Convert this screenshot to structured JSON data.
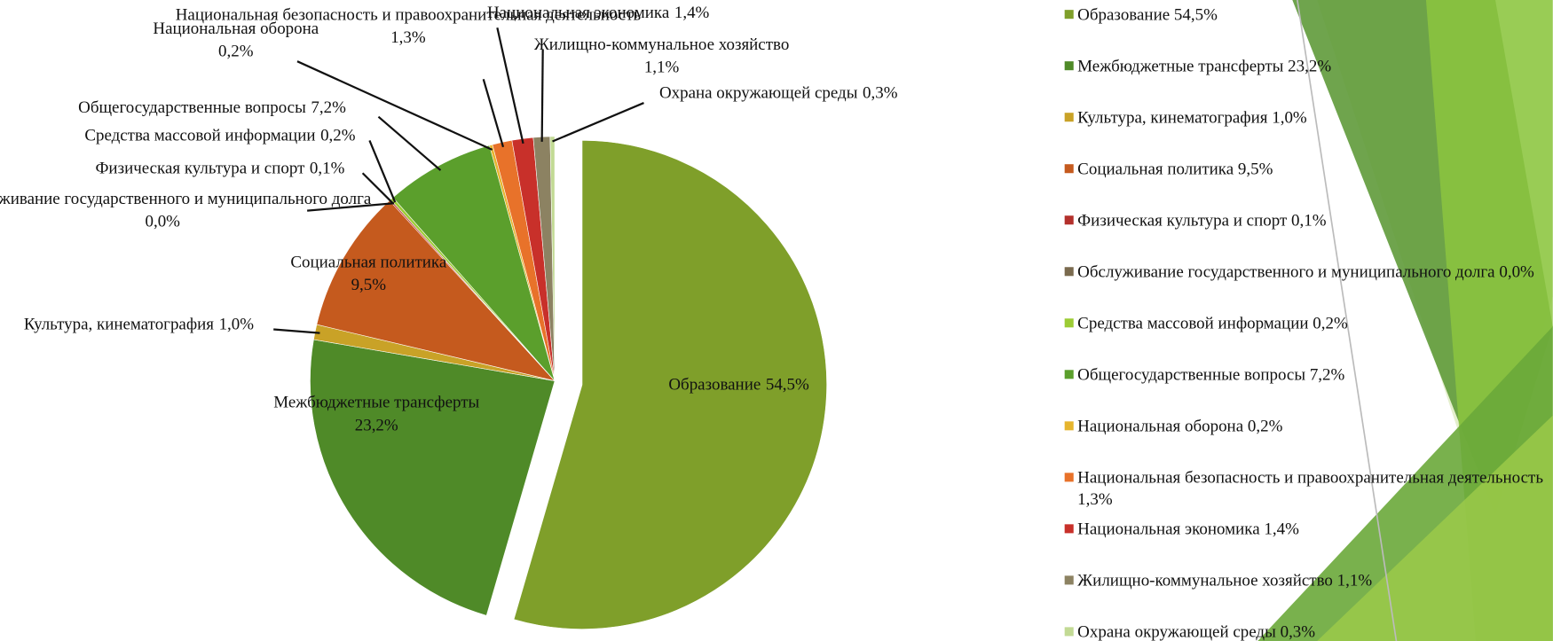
{
  "chart_data": {
    "type": "pie",
    "categories": [
      "Образование",
      "Межбюджетные трансферты",
      "Культура, кинематография",
      "Социальная политика",
      "Физическая культура и спорт",
      "Обслуживание государственного и муниципального долга",
      "Средства массовой информации",
      "Общегосударственные вопросы",
      "Национальная оборона",
      "Национальная безопасность и правоохранительная деятельность",
      "Национальная экономика",
      "Жилищно-коммунальное хозяйство",
      "Охрана окружающей среды"
    ],
    "values": [
      54.5,
      23.2,
      1.0,
      9.5,
      0.1,
      0.0,
      0.2,
      7.2,
      0.2,
      1.3,
      1.4,
      1.1,
      0.3
    ],
    "value_labels": [
      "54,5%",
      "23,2%",
      "1,0%",
      "9,5%",
      "0,1%",
      "0,0%",
      "0,2%",
      "7,2%",
      "0,2%",
      "1,3%",
      "1,4%",
      "1,1%",
      "0,3%"
    ],
    "colors": [
      "#7f9f2a",
      "#4f8a28",
      "#c9a227",
      "#c55a1e",
      "#b3302c",
      "#7a6a4e",
      "#9ccc35",
      "#5b9f2c",
      "#e6b52e",
      "#e8722a",
      "#c8302a",
      "#8c8262",
      "#c2da94"
    ],
    "legend": "right"
  }
}
